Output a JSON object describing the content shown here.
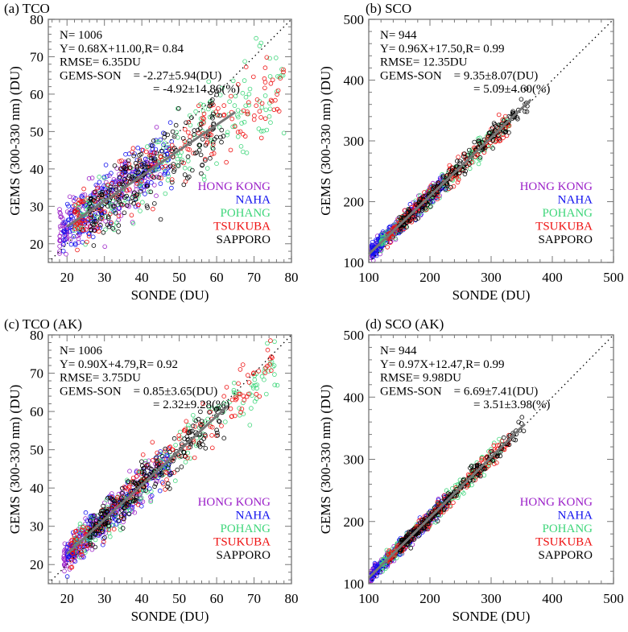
{
  "chart_data": [
    {
      "type": "scatter",
      "title": "(a) TCO",
      "xlabel": "SONDE (DU)",
      "ylabel": "GEMS (300-330 nm) (DU)",
      "xlim": [
        15,
        80
      ],
      "ylim": [
        15,
        80
      ],
      "xticks": [
        "20",
        "30",
        "40",
        "50",
        "60",
        "70",
        "80"
      ],
      "yticks": [
        "20",
        "30",
        "40",
        "50",
        "60",
        "70",
        "80"
      ],
      "stats": [
        "N= 1006",
        "Y= 0.68X+11.00,R= 0.84",
        "RMSE= 6.35DU",
        "GEMS-SON    = -2.27±5.94(DU)",
        "= -4.92±14.86(%)"
      ],
      "fit": {
        "slope": 0.68,
        "intercept": 11.0,
        "x_range": [
          20,
          65
        ]
      },
      "n": 1006,
      "rmse": 6.35,
      "one_to_one_line": true,
      "legend_position": "lower-right",
      "series": [
        {
          "name": "HONG KONG",
          "color": "#9b20c8",
          "x_range": [
            18,
            45
          ]
        },
        {
          "name": "NAHA",
          "color": "#1010ee",
          "x_range": [
            19,
            48
          ]
        },
        {
          "name": "POHANG",
          "color": "#3ed67a",
          "x_range": [
            22,
            78
          ]
        },
        {
          "name": "TSUKUBA",
          "color": "#ee1010",
          "x_range": [
            22,
            78
          ]
        },
        {
          "name": "SAPPORO",
          "color": "#000000",
          "x_range": [
            26,
            62
          ]
        }
      ]
    },
    {
      "type": "scatter",
      "title": "(b) SCO",
      "xlabel": "SONDE (DU)",
      "ylabel": "GEMS (300-330 nm) (DU)",
      "xlim": [
        100,
        500
      ],
      "ylim": [
        100,
        500
      ],
      "xticks": [
        "100",
        "200",
        "300",
        "400",
        "500"
      ],
      "yticks": [
        "100",
        "200",
        "300",
        "400",
        "500"
      ],
      "stats": [
        "N= 944",
        "Y= 0.96X+17.50,R= 0.99",
        "RMSE= 12.35DU",
        "GEMS-SON    = 9.35±8.07(DU)",
        "= 5.09±4.60(%)"
      ],
      "fit": {
        "slope": 0.96,
        "intercept": 17.5,
        "x_range": [
          100,
          365
        ]
      },
      "n": 944,
      "rmse": 12.35,
      "one_to_one_line": true,
      "legend_position": "lower-right",
      "series": [
        {
          "name": "HONG KONG",
          "color": "#9b20c8",
          "x_range": [
            100,
            220
          ]
        },
        {
          "name": "NAHA",
          "color": "#1010ee",
          "x_range": [
            105,
            230
          ]
        },
        {
          "name": "POHANG",
          "color": "#3ed67a",
          "x_range": [
            120,
            330
          ]
        },
        {
          "name": "TSUKUBA",
          "color": "#ee1010",
          "x_range": [
            130,
            330
          ]
        },
        {
          "name": "SAPPORO",
          "color": "#000000",
          "x_range": [
            150,
            360
          ]
        }
      ]
    },
    {
      "type": "scatter",
      "title": "(c) TCO (AK)",
      "xlabel": "SONDE (DU)",
      "ylabel": "GEMS (300-330 nm) (DU)",
      "xlim": [
        15,
        80
      ],
      "ylim": [
        15,
        80
      ],
      "xticks": [
        "20",
        "30",
        "40",
        "50",
        "60",
        "70",
        "80"
      ],
      "yticks": [
        "20",
        "30",
        "40",
        "50",
        "60",
        "70",
        "80"
      ],
      "stats": [
        "N= 1006",
        "Y= 0.90X+4.79,R= 0.92",
        "RMSE= 3.75DU",
        "GEMS-SON    = 0.85±3.65(DU)",
        "= 2.32±9.28(%)"
      ],
      "fit": {
        "slope": 0.9,
        "intercept": 4.79,
        "x_range": [
          20,
          63
        ]
      },
      "n": 1006,
      "rmse": 3.75,
      "one_to_one_line": true,
      "legend_position": "lower-right",
      "series": [
        {
          "name": "HONG KONG",
          "color": "#9b20c8",
          "x_range": [
            19,
            45
          ]
        },
        {
          "name": "NAHA",
          "color": "#1010ee",
          "x_range": [
            20,
            48
          ]
        },
        {
          "name": "POHANG",
          "color": "#3ed67a",
          "x_range": [
            22,
            77
          ]
        },
        {
          "name": "TSUKUBA",
          "color": "#ee1010",
          "x_range": [
            21,
            75
          ]
        },
        {
          "name": "SAPPORO",
          "color": "#000000",
          "x_range": [
            26,
            62
          ]
        }
      ]
    },
    {
      "type": "scatter",
      "title": "(d) SCO (AK)",
      "xlabel": "SONDE (DU)",
      "ylabel": "GEMS (300-330 nm) (DU)",
      "xlim": [
        100,
        500
      ],
      "ylim": [
        100,
        500
      ],
      "xticks": [
        "100",
        "200",
        "300",
        "400",
        "500"
      ],
      "yticks": [
        "100",
        "200",
        "300",
        "400",
        "500"
      ],
      "stats": [
        "N= 944",
        "Y= 0.97X+12.47,R= 0.99",
        "RMSE= 9.98DU",
        "GEMS-SON    = 6.69±7.41(DU)",
        "= 3.51±3.98(%)"
      ],
      "fit": {
        "slope": 0.97,
        "intercept": 12.47,
        "x_range": [
          100,
          355
        ]
      },
      "n": 944,
      "rmse": 9.98,
      "one_to_one_line": true,
      "legend_position": "lower-right",
      "series": [
        {
          "name": "HONG KONG",
          "color": "#9b20c8",
          "x_range": [
            100,
            220
          ]
        },
        {
          "name": "NAHA",
          "color": "#1010ee",
          "x_range": [
            105,
            230
          ]
        },
        {
          "name": "POHANG",
          "color": "#3ed67a",
          "x_range": [
            120,
            320
          ]
        },
        {
          "name": "TSUKUBA",
          "color": "#ee1010",
          "x_range": [
            130,
            330
          ]
        },
        {
          "name": "SAPPORO",
          "color": "#000000",
          "x_range": [
            150,
            355
          ]
        }
      ]
    }
  ]
}
